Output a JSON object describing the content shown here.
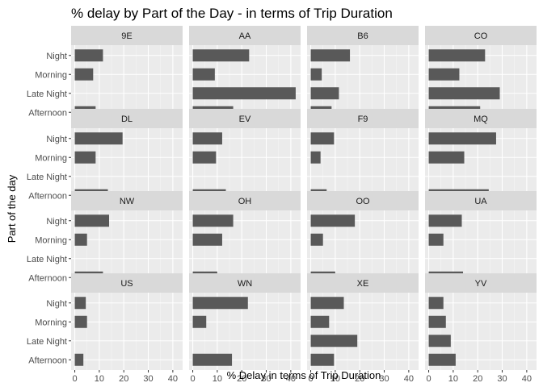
{
  "chart_data": {
    "type": "bar",
    "orientation": "horizontal",
    "faceted": true,
    "title": "% delay by Part of the Day - in terms of Trip Duration",
    "xlabel": "% Delay in terms of Trip Duration",
    "ylabel": "Part of the day",
    "xlim": [
      -1.5,
      44
    ],
    "xticks": [
      0,
      10,
      20,
      30,
      40
    ],
    "xtick_labels": [
      "0",
      "10",
      "20",
      "30",
      "40"
    ],
    "categories": [
      "Night",
      "Morning",
      "Late Night",
      "Afternoon"
    ],
    "grid": true,
    "bar_color": "#595959",
    "panel_background": "#ebebeb",
    "strip_background": "#d9d9d9",
    "panels": [
      {
        "carrier": "9E",
        "values": [
          11.5,
          7.5,
          null,
          8.5
        ]
      },
      {
        "carrier": "AA",
        "values": [
          23,
          9,
          42,
          16.5
        ]
      },
      {
        "carrier": "B6",
        "values": [
          16,
          4.5,
          11.5,
          8.5
        ]
      },
      {
        "carrier": "CO",
        "values": [
          23,
          12.5,
          29,
          21
        ]
      },
      {
        "carrier": "DL",
        "values": [
          19.5,
          8.5,
          null,
          13.5
        ]
      },
      {
        "carrier": "EV",
        "values": [
          12,
          9.5,
          null,
          13.5
        ]
      },
      {
        "carrier": "F9",
        "values": [
          9.5,
          4,
          null,
          6.5
        ]
      },
      {
        "carrier": "MQ",
        "values": [
          27.5,
          14.5,
          null,
          24.5
        ]
      },
      {
        "carrier": "NW",
        "values": [
          14,
          5,
          null,
          11.5
        ]
      },
      {
        "carrier": "OH",
        "values": [
          16.5,
          12,
          null,
          10
        ]
      },
      {
        "carrier": "OO",
        "values": [
          18,
          5,
          null,
          10
        ]
      },
      {
        "carrier": "UA",
        "values": [
          13.5,
          6,
          null,
          14
        ]
      },
      {
        "carrier": "US",
        "values": [
          4.5,
          5,
          null,
          3.5
        ]
      },
      {
        "carrier": "WN",
        "values": [
          22.5,
          5.5,
          null,
          16
        ]
      },
      {
        "carrier": "XE",
        "values": [
          13.5,
          7.5,
          19,
          9.5
        ]
      },
      {
        "carrier": "YV",
        "values": [
          6,
          7,
          9,
          11
        ]
      }
    ]
  }
}
